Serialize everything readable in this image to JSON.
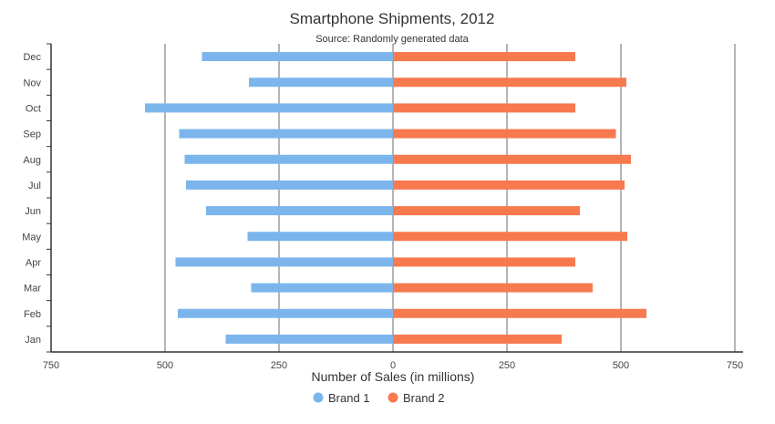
{
  "chart_data": {
    "type": "bar",
    "orientation": "horizontal-diverging",
    "title": "Smartphone Shipments, 2012",
    "subtitle": "Source: Randomly generated data",
    "xlabel": "Number of Sales (in millions)",
    "ylabel": "",
    "categories": [
      "Jan",
      "Feb",
      "Mar",
      "Apr",
      "May",
      "Jun",
      "Jul",
      "Aug",
      "Sep",
      "Oct",
      "Nov",
      "Dec"
    ],
    "x_ticks": [
      -750,
      -500,
      -250,
      0,
      250,
      500,
      750
    ],
    "x_tick_labels": [
      "750",
      "500",
      "250",
      "0",
      "250",
      "500",
      "750"
    ],
    "xlim": [
      -750,
      750
    ],
    "grid": true,
    "legend_position": "bottom-center",
    "series": [
      {
        "name": "Brand 1",
        "color": "#7cb5ec",
        "direction": "left",
        "values": [
          367,
          472,
          311,
          477,
          319,
          410,
          454,
          457,
          469,
          544,
          316,
          419
        ]
      },
      {
        "name": "Brand 2",
        "color": "#f7794e",
        "direction": "right",
        "values": [
          370,
          556,
          438,
          400,
          514,
          410,
          508,
          522,
          489,
          400,
          512,
          400
        ]
      }
    ]
  }
}
